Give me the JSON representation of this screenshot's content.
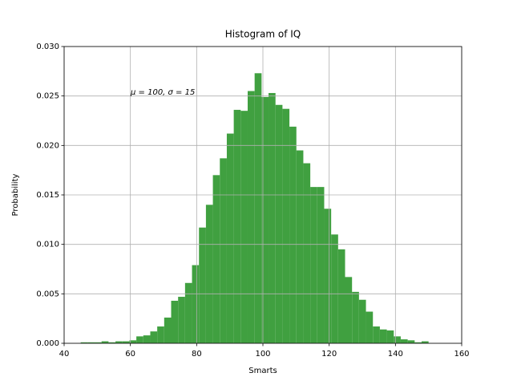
{
  "chart_data": {
    "type": "histogram",
    "title": "Histogram of IQ",
    "xlabel": "Smarts",
    "ylabel": "Probability",
    "annotation": "μ = 100,  σ = 15",
    "bins": [
      45,
      47.1,
      49.2,
      51.3,
      53.4,
      55.5,
      57.6,
      59.7,
      61.8,
      63.9,
      66,
      68.1,
      70.2,
      72.3,
      74.4,
      76.5,
      78.6,
      80.7,
      82.8,
      84.9,
      87,
      89.1,
      91.2,
      93.3,
      95.4,
      97.5,
      99.6,
      101.7,
      103.8,
      105.9,
      108,
      110.1,
      112.2,
      114.3,
      116.4,
      118.5,
      120.6,
      122.7,
      124.8,
      126.9,
      129,
      131.1,
      133.2,
      135.3,
      137.4,
      139.5,
      141.6,
      143.7,
      145.8,
      147.9,
      150
    ],
    "values": [
      0.0001,
      0.0001,
      0.0001,
      0.0002,
      0.0001,
      0.0002,
      0.0002,
      0.0003,
      0.0007,
      0.0008,
      0.0012,
      0.0017,
      0.0026,
      0.0043,
      0.0047,
      0.0061,
      0.0079,
      0.0117,
      0.014,
      0.017,
      0.0187,
      0.0212,
      0.0236,
      0.0235,
      0.0255,
      0.0273,
      0.0249,
      0.0253,
      0.0241,
      0.0237,
      0.0219,
      0.0195,
      0.0182,
      0.0158,
      0.0158,
      0.0136,
      0.011,
      0.0095,
      0.0067,
      0.0052,
      0.0044,
      0.0032,
      0.0017,
      0.0014,
      0.0013,
      0.0007,
      0.0004,
      0.0003,
      0.0001,
      0.0002
    ],
    "color": "#40a040",
    "xlim": [
      40,
      160
    ],
    "xticks": [
      40,
      60,
      80,
      100,
      120,
      140,
      160
    ],
    "ylim": [
      0,
      0.03
    ],
    "yticks": [
      {
        "value": 0,
        "label": "0.000"
      },
      {
        "value": 0.005,
        "label": "0.005"
      },
      {
        "value": 0.01,
        "label": "0.010"
      },
      {
        "value": 0.015,
        "label": "0.015"
      },
      {
        "value": 0.02,
        "label": "0.020"
      },
      {
        "value": 0.025,
        "label": "0.025"
      },
      {
        "value": 0.03,
        "label": "0.030"
      }
    ],
    "grid": true
  }
}
